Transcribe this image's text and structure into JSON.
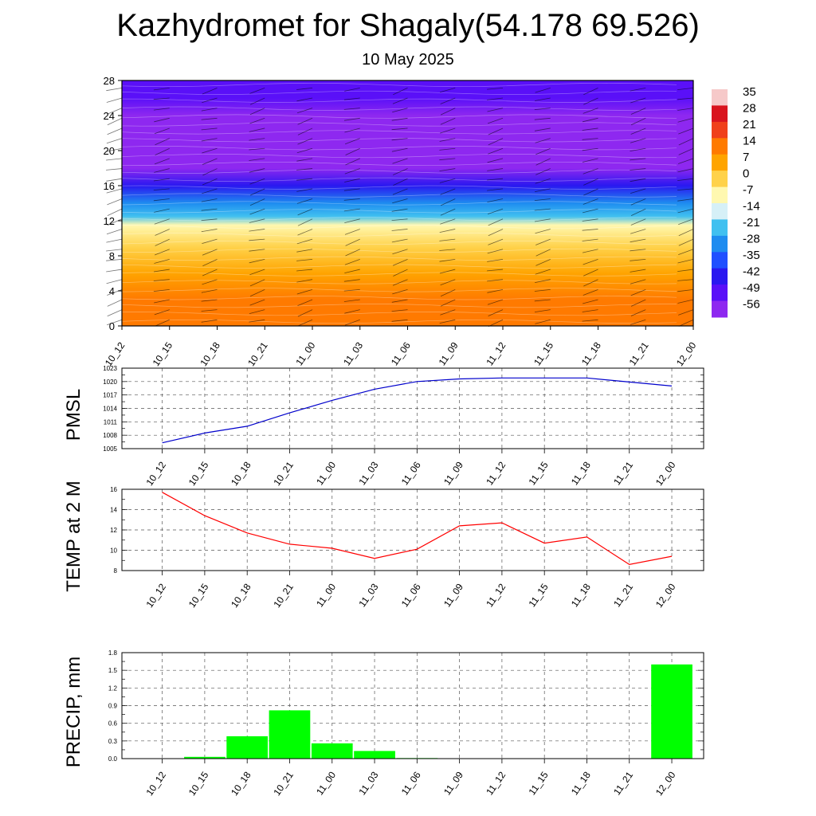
{
  "title": "Kazhydromet for Shagaly(54.178 69.526)",
  "subtitle": "10 May 2025",
  "chart_data": [
    {
      "type": "heatmap",
      "x_ticks": [
        "10_12",
        "10_15",
        "10_18",
        "10_21",
        "11_00",
        "11_03",
        "11_06",
        "11_09",
        "11_12",
        "11_15",
        "11_18",
        "11_21",
        "12_00"
      ],
      "y_ticks": [
        0,
        4,
        8,
        12,
        16,
        20,
        24,
        28
      ],
      "ylim": [
        0,
        28
      ],
      "colorbar_labels": [
        "35",
        "28",
        "21",
        "14",
        "7",
        "0",
        "-7",
        "-14",
        "-21",
        "-28",
        "-35",
        "-42",
        "-49",
        "-56"
      ],
      "colorbar_colors": [
        "#f6c9c9",
        "#d9141e",
        "#f0401a",
        "#ff7a00",
        "#ffa400",
        "#ffd24a",
        "#fff8b0",
        "#d6f0f7",
        "#40c0f0",
        "#1e8cf0",
        "#2050ff",
        "#2a18f0",
        "#5a10f8",
        "#8e28f0"
      ],
      "profile": [
        {
          "y": 0,
          "value": 19
        },
        {
          "y": 3,
          "value": 15
        },
        {
          "y": 6,
          "value": 10
        },
        {
          "y": 9,
          "value": 4
        },
        {
          "y": 11.5,
          "value": -4
        },
        {
          "y": 12.5,
          "value": -16
        },
        {
          "y": 14,
          "value": -24
        },
        {
          "y": 16,
          "value": -36
        },
        {
          "y": 18,
          "value": -50
        },
        {
          "y": 20,
          "value": -54
        },
        {
          "y": 22,
          "value": -52
        },
        {
          "y": 24,
          "value": -50
        },
        {
          "y": 26,
          "value": -49
        },
        {
          "y": 28,
          "value": -48
        }
      ]
    },
    {
      "type": "line",
      "ylabel": "PMSL",
      "categories": [
        "10_12",
        "10_15",
        "10_18",
        "10_21",
        "11_00",
        "11_03",
        "11_06",
        "11_09",
        "11_12",
        "11_15",
        "11_18",
        "11_21",
        "12_00"
      ],
      "values": [
        1006.3,
        1008.5,
        1010.0,
        1013.0,
        1015.8,
        1018.3,
        1020.0,
        1020.6,
        1020.8,
        1020.8,
        1020.8,
        1019.9,
        1019.0
      ],
      "yticks": [
        "1005",
        "1008",
        "1011",
        "1014",
        "1017",
        "1020",
        "1023"
      ],
      "ylim": [
        1005,
        1023
      ],
      "color": "#0000cc"
    },
    {
      "type": "line",
      "ylabel": "TEMP at 2 M",
      "categories": [
        "10_12",
        "10_15",
        "10_18",
        "10_21",
        "11_00",
        "11_03",
        "11_06",
        "11_09",
        "11_12",
        "11_15",
        "11_18",
        "11_21",
        "12_00"
      ],
      "values": [
        15.7,
        13.4,
        11.7,
        10.6,
        10.2,
        9.2,
        10.1,
        12.4,
        12.7,
        10.7,
        11.3,
        8.6,
        9.4
      ],
      "yticks": [
        "8",
        "10",
        "12",
        "14",
        "16"
      ],
      "ylim": [
        8,
        16
      ],
      "color": "#ff0000"
    },
    {
      "type": "bar",
      "ylabel": "PRECIP, mm",
      "categories": [
        "10_12",
        "10_15",
        "10_18",
        "10_21",
        "11_00",
        "11_03",
        "11_06",
        "11_09",
        "11_12",
        "11_15",
        "11_18",
        "11_21",
        "12_00"
      ],
      "values": [
        0,
        0.03,
        0.38,
        0.82,
        0.26,
        0.13,
        0.01,
        0,
        0,
        0,
        0,
        0,
        1.6
      ],
      "yticks": [
        "0.0",
        "0.3",
        "0.6",
        "0.9",
        "1.2",
        "1.5",
        "1.8"
      ],
      "ylim": [
        0,
        1.8
      ],
      "color": "#00ff00"
    }
  ]
}
